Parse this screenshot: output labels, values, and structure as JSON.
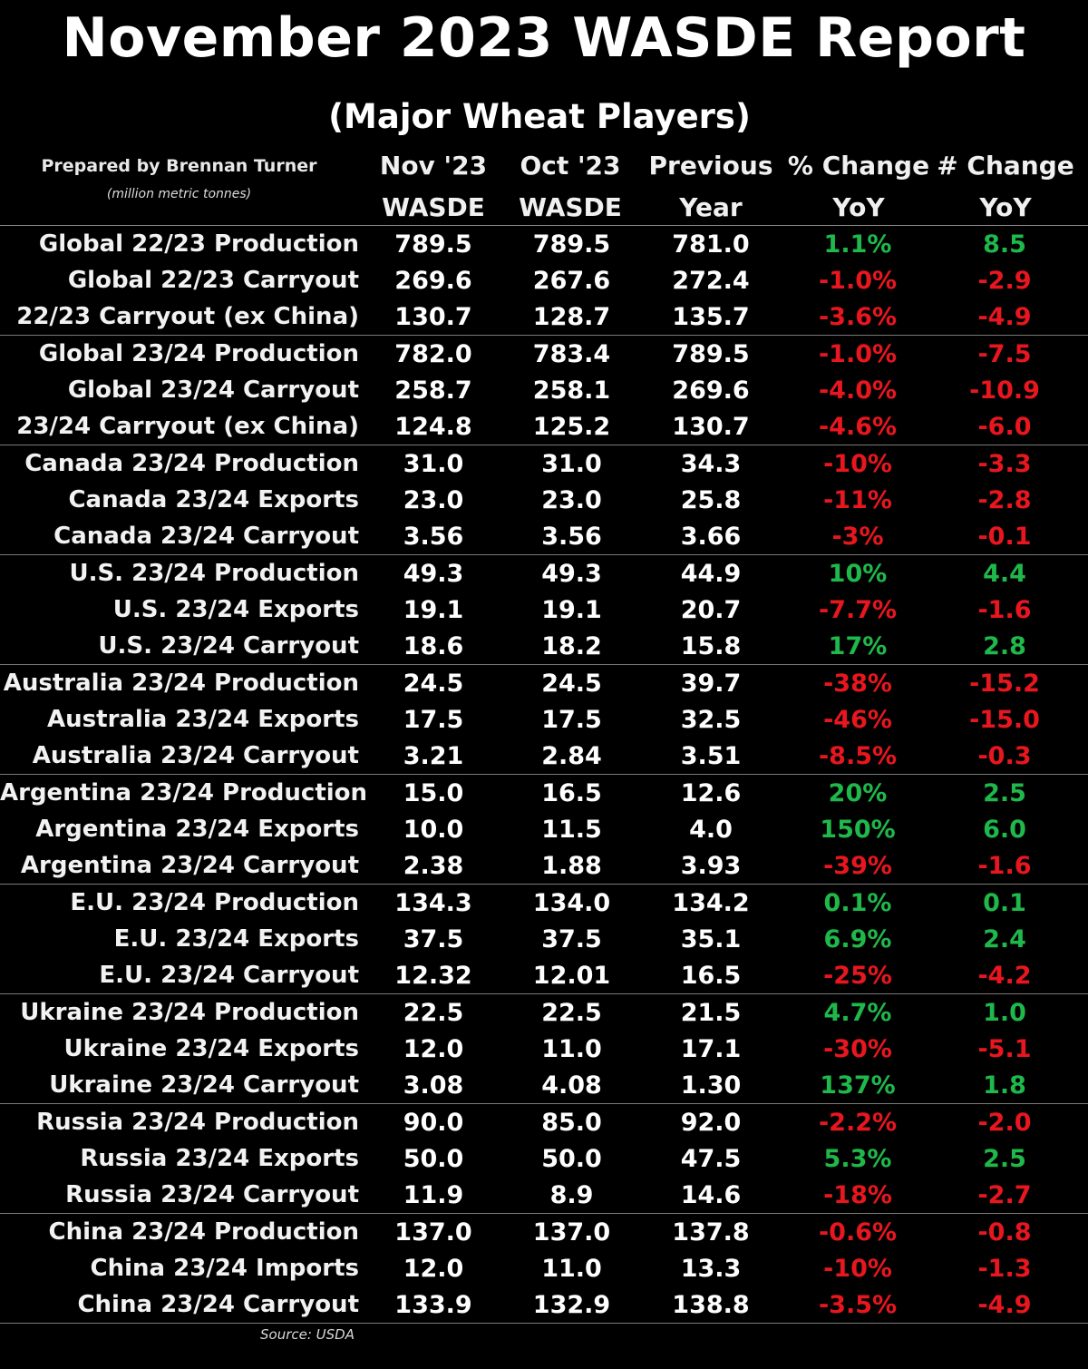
{
  "title": "November 2023 WASDE Report",
  "subtitle": "(Major Wheat Players)",
  "prepared_by": "Prepared by Brennan Turner",
  "units": "(million metric tonnes)",
  "source": "Source: USDA",
  "colors": {
    "background": "#000000",
    "text": "#ffffff",
    "positive": "#1fb84a",
    "negative": "#e8161e"
  },
  "chart_data": {
    "type": "table",
    "title": "November 2023 WASDE Report",
    "subtitle": "(Major Wheat Players)",
    "columns": [
      {
        "line1": "Nov '23",
        "line2": "WASDE"
      },
      {
        "line1": "Oct '23",
        "line2": "WASDE"
      },
      {
        "line1": "Previous",
        "line2": "Year"
      },
      {
        "line1": "% Change",
        "line2": "YoY"
      },
      {
        "line1": "# Change",
        "line2": "YoY"
      }
    ],
    "groups": [
      [
        {
          "label": "Global 22/23 Production",
          "nov": "789.5",
          "oct": "789.5",
          "prev": "781.0",
          "pct": "1.1%",
          "num": "8.5",
          "sign": "pos"
        },
        {
          "label": "Global 22/23 Carryout",
          "nov": "269.6",
          "oct": "267.6",
          "prev": "272.4",
          "pct": "-1.0%",
          "num": "-2.9",
          "sign": "neg"
        },
        {
          "label": "22/23 Carryout (ex China)",
          "nov": "130.7",
          "oct": "128.7",
          "prev": "135.7",
          "pct": "-3.6%",
          "num": "-4.9",
          "sign": "neg"
        }
      ],
      [
        {
          "label": "Global 23/24 Production",
          "nov": "782.0",
          "oct": "783.4",
          "prev": "789.5",
          "pct": "-1.0%",
          "num": "-7.5",
          "sign": "neg"
        },
        {
          "label": "Global 23/24 Carryout",
          "nov": "258.7",
          "oct": "258.1",
          "prev": "269.6",
          "pct": "-4.0%",
          "num": "-10.9",
          "sign": "neg"
        },
        {
          "label": "23/24 Carryout (ex China)",
          "nov": "124.8",
          "oct": "125.2",
          "prev": "130.7",
          "pct": "-4.6%",
          "num": "-6.0",
          "sign": "neg"
        }
      ],
      [
        {
          "label": "Canada 23/24 Production",
          "nov": "31.0",
          "oct": "31.0",
          "prev": "34.3",
          "pct": "-10%",
          "num": "-3.3",
          "sign": "neg"
        },
        {
          "label": "Canada 23/24 Exports",
          "nov": "23.0",
          "oct": "23.0",
          "prev": "25.8",
          "pct": "-11%",
          "num": "-2.8",
          "sign": "neg"
        },
        {
          "label": "Canada 23/24 Carryout",
          "nov": "3.56",
          "oct": "3.56",
          "prev": "3.66",
          "pct": "-3%",
          "num": "-0.1",
          "sign": "neg"
        }
      ],
      [
        {
          "label": "U.S. 23/24 Production",
          "nov": "49.3",
          "oct": "49.3",
          "prev": "44.9",
          "pct": "10%",
          "num": "4.4",
          "sign": "pos"
        },
        {
          "label": "U.S. 23/24 Exports",
          "nov": "19.1",
          "oct": "19.1",
          "prev": "20.7",
          "pct": "-7.7%",
          "num": "-1.6",
          "sign": "neg"
        },
        {
          "label": "U.S. 23/24 Carryout",
          "nov": "18.6",
          "oct": "18.2",
          "prev": "15.8",
          "pct": "17%",
          "num": "2.8",
          "sign": "pos"
        }
      ],
      [
        {
          "label": "Australia 23/24 Production",
          "nov": "24.5",
          "oct": "24.5",
          "prev": "39.7",
          "pct": "-38%",
          "num": "-15.2",
          "sign": "neg"
        },
        {
          "label": "Australia 23/24 Exports",
          "nov": "17.5",
          "oct": "17.5",
          "prev": "32.5",
          "pct": "-46%",
          "num": "-15.0",
          "sign": "neg"
        },
        {
          "label": "Australia 23/24 Carryout",
          "nov": "3.21",
          "oct": "2.84",
          "prev": "3.51",
          "pct": "-8.5%",
          "num": "-0.3",
          "sign": "neg"
        }
      ],
      [
        {
          "label": "Argentina 23/24 Production",
          "nov": "15.0",
          "oct": "16.5",
          "prev": "12.6",
          "pct": "20%",
          "num": "2.5",
          "sign": "pos"
        },
        {
          "label": "Argentina 23/24 Exports",
          "nov": "10.0",
          "oct": "11.5",
          "prev": "4.0",
          "pct": "150%",
          "num": "6.0",
          "sign": "pos"
        },
        {
          "label": "Argentina 23/24 Carryout",
          "nov": "2.38",
          "oct": "1.88",
          "prev": "3.93",
          "pct": "-39%",
          "num": "-1.6",
          "sign": "neg"
        }
      ],
      [
        {
          "label": "E.U. 23/24 Production",
          "nov": "134.3",
          "oct": "134.0",
          "prev": "134.2",
          "pct": "0.1%",
          "num": "0.1",
          "sign": "pos"
        },
        {
          "label": "E.U. 23/24 Exports",
          "nov": "37.5",
          "oct": "37.5",
          "prev": "35.1",
          "pct": "6.9%",
          "num": "2.4",
          "sign": "pos"
        },
        {
          "label": "E.U. 23/24 Carryout",
          "nov": "12.32",
          "oct": "12.01",
          "prev": "16.5",
          "pct": "-25%",
          "num": "-4.2",
          "sign": "neg"
        }
      ],
      [
        {
          "label": "Ukraine 23/24 Production",
          "nov": "22.5",
          "oct": "22.5",
          "prev": "21.5",
          "pct": "4.7%",
          "num": "1.0",
          "sign": "pos"
        },
        {
          "label": "Ukraine 23/24 Exports",
          "nov": "12.0",
          "oct": "11.0",
          "prev": "17.1",
          "pct": "-30%",
          "num": "-5.1",
          "sign": "neg"
        },
        {
          "label": "Ukraine 23/24 Carryout",
          "nov": "3.08",
          "oct": "4.08",
          "prev": "1.30",
          "pct": "137%",
          "num": "1.8",
          "sign": "pos"
        }
      ],
      [
        {
          "label": "Russia 23/24 Production",
          "nov": "90.0",
          "oct": "85.0",
          "prev": "92.0",
          "pct": "-2.2%",
          "num": "-2.0",
          "sign": "neg"
        },
        {
          "label": "Russia 23/24 Exports",
          "nov": "50.0",
          "oct": "50.0",
          "prev": "47.5",
          "pct": "5.3%",
          "num": "2.5",
          "sign": "pos"
        },
        {
          "label": "Russia 23/24 Carryout",
          "nov": "11.9",
          "oct": "8.9",
          "prev": "14.6",
          "pct": "-18%",
          "num": "-2.7",
          "sign": "neg"
        }
      ],
      [
        {
          "label": "China 23/24 Production",
          "nov": "137.0",
          "oct": "137.0",
          "prev": "137.8",
          "pct": "-0.6%",
          "num": "-0.8",
          "sign": "neg"
        },
        {
          "label": "China 23/24 Imports",
          "nov": "12.0",
          "oct": "11.0",
          "prev": "13.3",
          "pct": "-10%",
          "num": "-1.3",
          "sign": "neg"
        },
        {
          "label": "China 23/24 Carryout",
          "nov": "133.9",
          "oct": "132.9",
          "prev": "138.8",
          "pct": "-3.5%",
          "num": "-4.9",
          "sign": "neg"
        }
      ]
    ]
  }
}
